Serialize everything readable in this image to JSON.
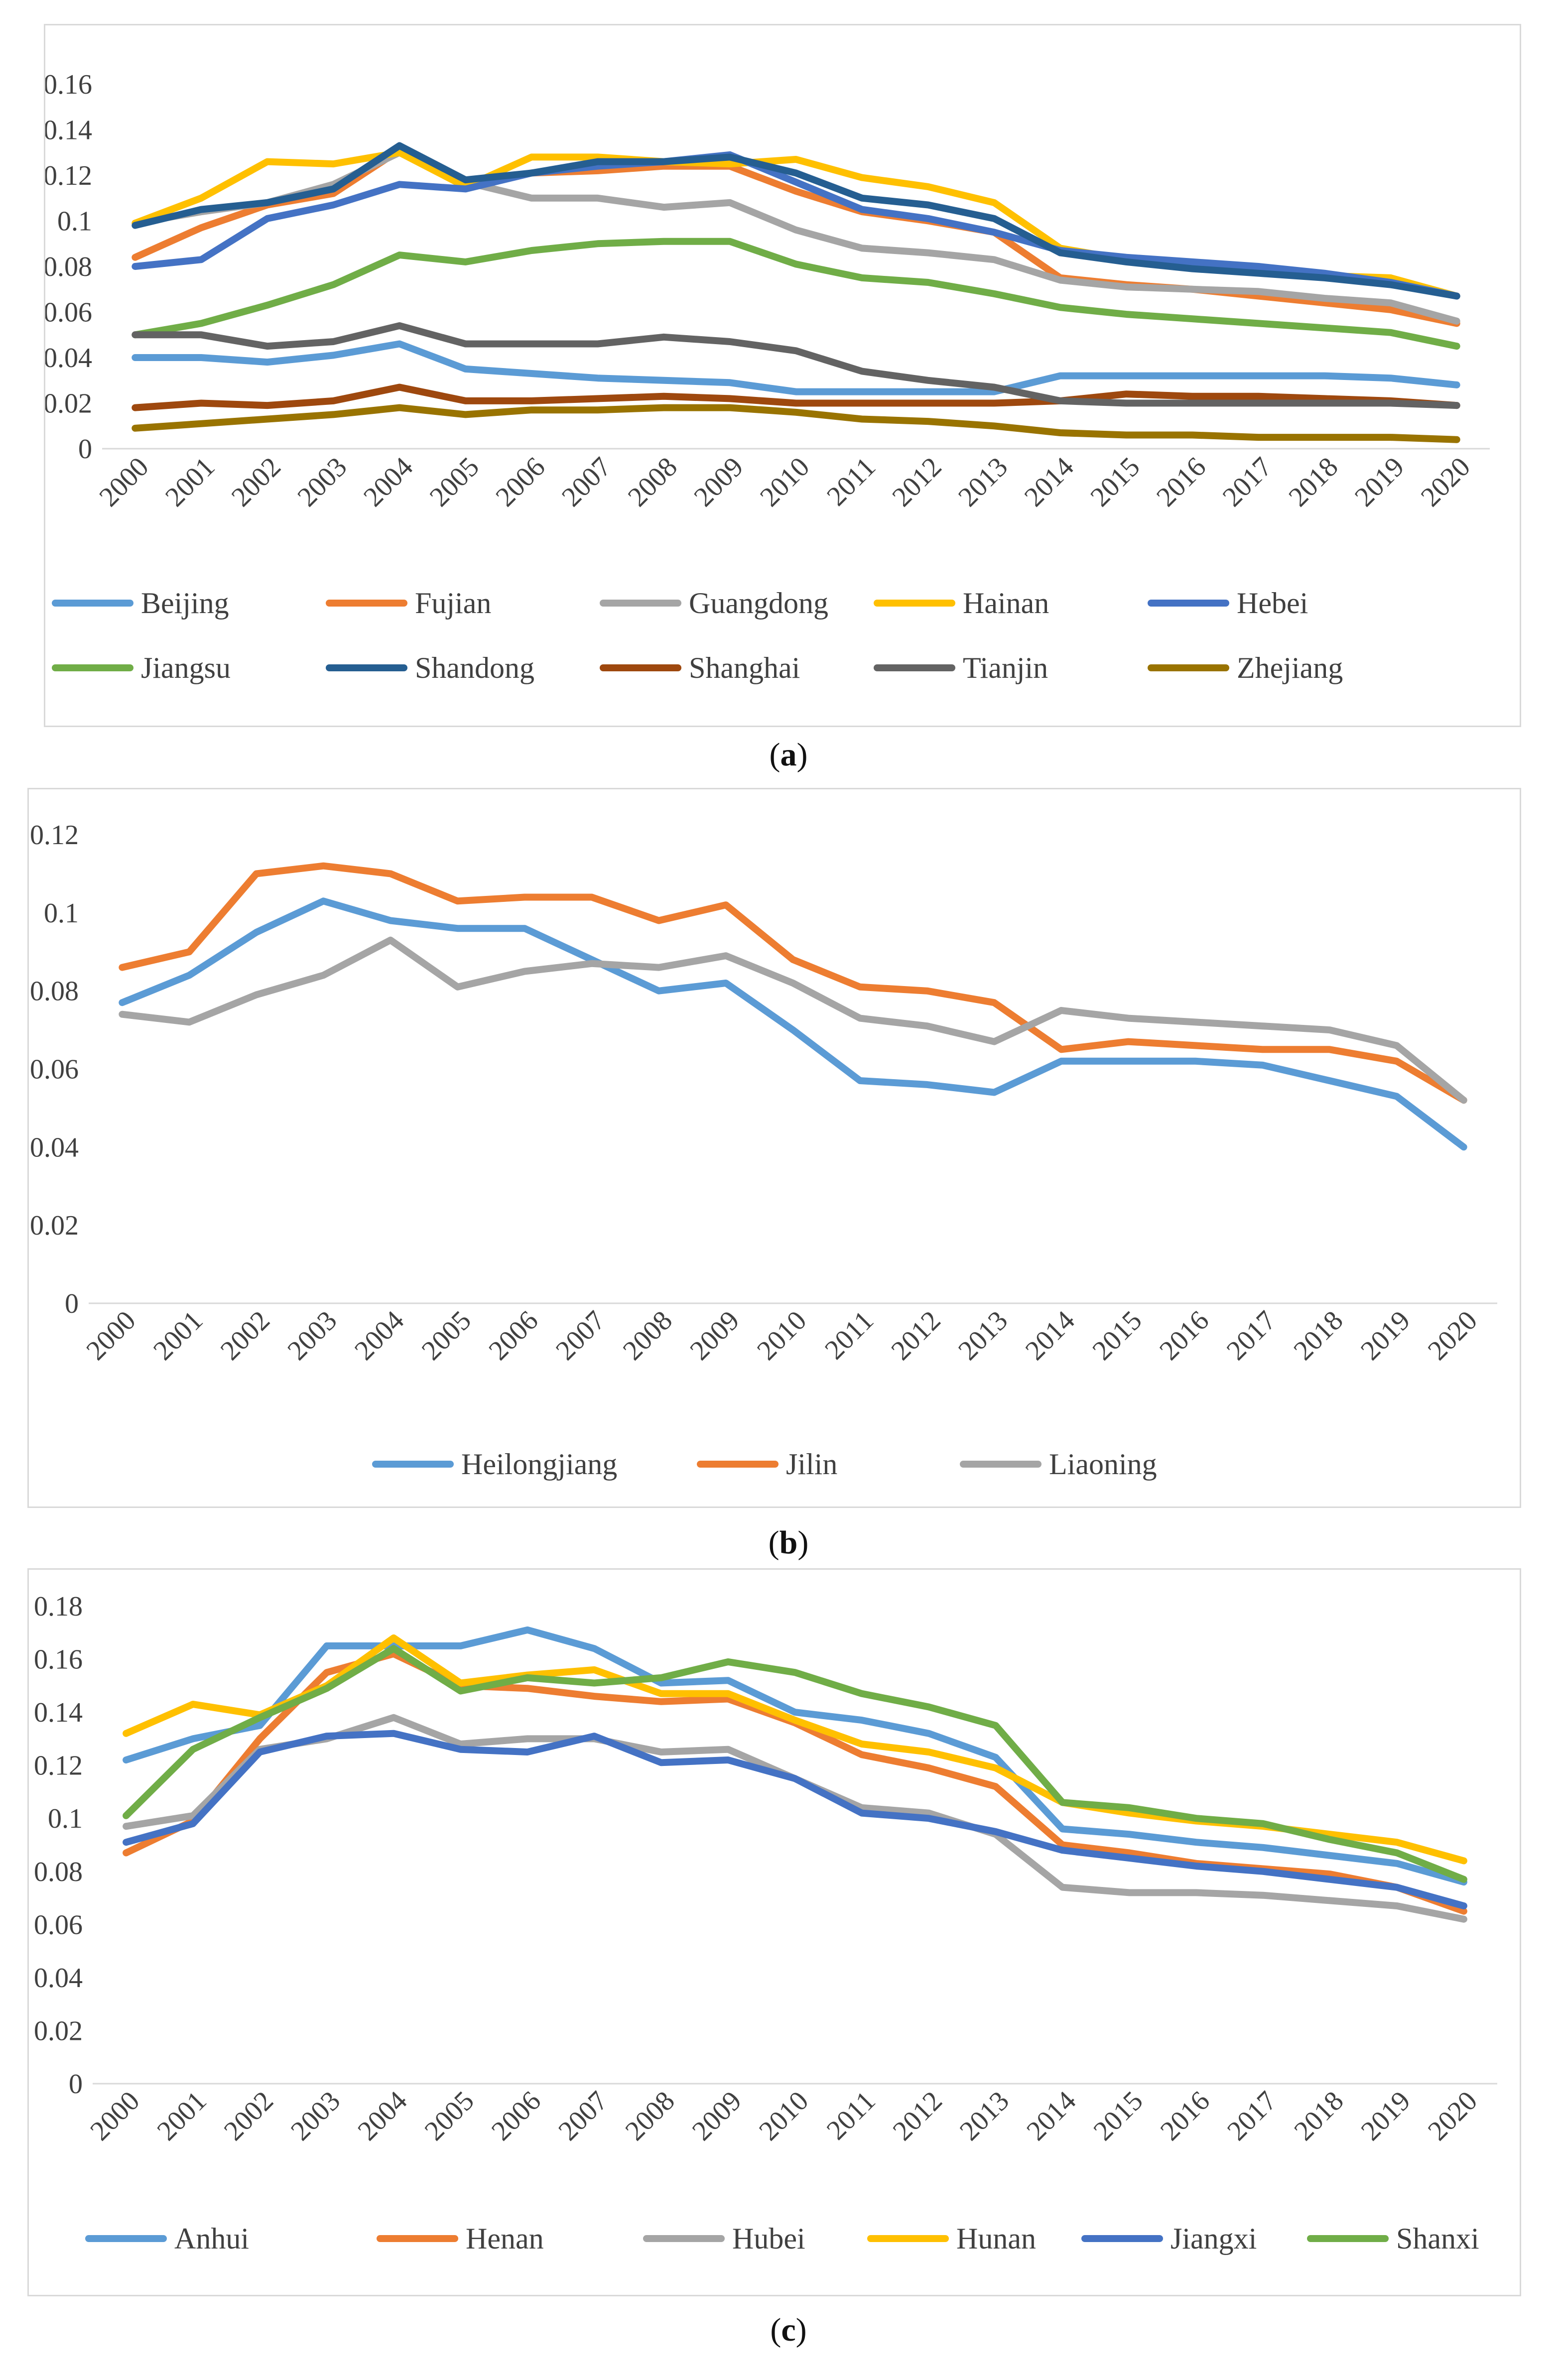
{
  "captions": {
    "a": "a",
    "b": "b",
    "c": "c"
  },
  "chart_data": [
    {
      "type": "line",
      "panel": "a",
      "title": "",
      "xlabel": "",
      "ylabel": "",
      "ylim": [
        0,
        0.16
      ],
      "yticks": [
        "0",
        "0.02",
        "0.04",
        "0.06",
        "0.08",
        "0.1",
        "0.12",
        "0.14",
        "0.16"
      ],
      "grid": false,
      "legend": "bottom",
      "x": [
        "2000",
        "2001",
        "2002",
        "2003",
        "2004",
        "2005",
        "2006",
        "2007",
        "2008",
        "2009",
        "2010",
        "2011",
        "2012",
        "2013",
        "2014",
        "2015",
        "2016",
        "2017",
        "2018",
        "2019",
        "2020"
      ],
      "series": [
        {
          "name": "Beijing",
          "color": "#5b9bd5",
          "values": [
            0.04,
            0.04,
            0.038,
            0.041,
            0.046,
            0.035,
            0.033,
            0.031,
            0.03,
            0.029,
            0.025,
            0.025,
            0.025,
            0.025,
            0.032,
            0.032,
            0.032,
            0.032,
            0.032,
            0.031,
            0.028
          ]
        },
        {
          "name": "Fujian",
          "color": "#ed7d31",
          "values": [
            0.084,
            0.097,
            0.107,
            0.112,
            0.131,
            0.117,
            0.121,
            0.122,
            0.124,
            0.124,
            0.113,
            0.104,
            0.1,
            0.095,
            0.075,
            0.072,
            0.07,
            0.067,
            0.064,
            0.061,
            0.055
          ]
        },
        {
          "name": "Guangdong",
          "color": "#a5a5a5",
          "values": [
            0.099,
            0.104,
            0.108,
            0.116,
            0.13,
            0.117,
            0.11,
            0.11,
            0.106,
            0.108,
            0.096,
            0.088,
            0.086,
            0.083,
            0.074,
            0.071,
            0.07,
            0.069,
            0.066,
            0.064,
            0.056
          ]
        },
        {
          "name": "Hainan",
          "color": "#ffc000",
          "values": [
            0.099,
            0.11,
            0.126,
            0.125,
            0.13,
            0.115,
            0.128,
            0.128,
            0.126,
            0.125,
            0.127,
            0.119,
            0.115,
            0.108,
            0.088,
            0.083,
            0.08,
            0.078,
            0.076,
            0.075,
            0.067
          ]
        },
        {
          "name": "Hebei",
          "color": "#4472c4",
          "values": [
            0.08,
            0.083,
            0.101,
            0.107,
            0.116,
            0.114,
            0.121,
            0.124,
            0.126,
            0.129,
            0.117,
            0.105,
            0.101,
            0.095,
            0.087,
            0.084,
            0.082,
            0.08,
            0.077,
            0.073,
            0.067
          ]
        },
        {
          "name": "Jiangsu",
          "color": "#70ad47",
          "values": [
            0.05,
            0.055,
            0.063,
            0.072,
            0.085,
            0.082,
            0.087,
            0.09,
            0.091,
            0.091,
            0.081,
            0.075,
            0.073,
            0.068,
            0.062,
            0.059,
            0.057,
            0.055,
            0.053,
            0.051,
            0.045
          ]
        },
        {
          "name": "Shandong",
          "color": "#255e91",
          "values": [
            0.098,
            0.105,
            0.108,
            0.114,
            0.133,
            0.118,
            0.121,
            0.126,
            0.126,
            0.128,
            0.121,
            0.11,
            0.107,
            0.101,
            0.086,
            0.082,
            0.079,
            0.077,
            0.075,
            0.072,
            0.067
          ]
        },
        {
          "name": "Shanghai",
          "color": "#9e480e",
          "values": [
            0.018,
            0.02,
            0.019,
            0.021,
            0.027,
            0.021,
            0.021,
            0.022,
            0.023,
            0.022,
            0.02,
            0.02,
            0.02,
            0.02,
            0.021,
            0.024,
            0.023,
            0.023,
            0.022,
            0.021,
            0.019
          ]
        },
        {
          "name": "Tianjin",
          "color": "#636363",
          "values": [
            0.05,
            0.05,
            0.045,
            0.047,
            0.054,
            0.046,
            0.046,
            0.046,
            0.049,
            0.047,
            0.043,
            0.034,
            0.03,
            0.027,
            0.021,
            0.02,
            0.02,
            0.02,
            0.02,
            0.02,
            0.019
          ]
        },
        {
          "name": "Zhejiang",
          "color": "#997300",
          "values": [
            0.009,
            0.011,
            0.013,
            0.015,
            0.018,
            0.015,
            0.017,
            0.017,
            0.018,
            0.018,
            0.016,
            0.013,
            0.012,
            0.01,
            0.007,
            0.006,
            0.006,
            0.005,
            0.005,
            0.005,
            0.004
          ]
        }
      ]
    },
    {
      "type": "line",
      "panel": "b",
      "title": "",
      "xlabel": "",
      "ylabel": "",
      "ylim": [
        0,
        0.12
      ],
      "yticks": [
        "0",
        "0.02",
        "0.04",
        "0.06",
        "0.08",
        "0.1",
        "0.12"
      ],
      "grid": false,
      "legend": "bottom",
      "x": [
        "2000",
        "2001",
        "2002",
        "2003",
        "2004",
        "2005",
        "2006",
        "2007",
        "2008",
        "2009",
        "2010",
        "2011",
        "2012",
        "2013",
        "2014",
        "2015",
        "2016",
        "2017",
        "2018",
        "2019",
        "2020"
      ],
      "series": [
        {
          "name": "Heilongjiang",
          "color": "#5b9bd5",
          "values": [
            0.077,
            0.084,
            0.095,
            0.103,
            0.098,
            0.096,
            0.096,
            0.088,
            0.08,
            0.082,
            0.07,
            0.057,
            0.056,
            0.054,
            0.062,
            0.062,
            0.062,
            0.061,
            0.057,
            0.053,
            0.04
          ]
        },
        {
          "name": "Jilin",
          "color": "#ed7d31",
          "values": [
            0.086,
            0.09,
            0.11,
            0.112,
            0.11,
            0.103,
            0.104,
            0.104,
            0.098,
            0.102,
            0.088,
            0.081,
            0.08,
            0.077,
            0.065,
            0.067,
            0.066,
            0.065,
            0.065,
            0.062,
            0.052
          ]
        },
        {
          "name": "Liaoning",
          "color": "#a5a5a5",
          "values": [
            0.074,
            0.072,
            0.079,
            0.084,
            0.093,
            0.081,
            0.085,
            0.087,
            0.086,
            0.089,
            0.082,
            0.073,
            0.071,
            0.067,
            0.075,
            0.073,
            0.072,
            0.071,
            0.07,
            0.066,
            0.052
          ]
        }
      ]
    },
    {
      "type": "line",
      "panel": "c",
      "title": "",
      "xlabel": "",
      "ylabel": "",
      "ylim": [
        0,
        0.18
      ],
      "yticks": [
        "0",
        "0.02",
        "0.04",
        "0.06",
        "0.08",
        "0.1",
        "0.12",
        "0.14",
        "0.16",
        "0.18"
      ],
      "grid": false,
      "legend": "bottom",
      "x": [
        "2000",
        "2001",
        "2002",
        "2003",
        "2004",
        "2005",
        "2006",
        "2007",
        "2008",
        "2009",
        "2010",
        "2011",
        "2012",
        "2013",
        "2014",
        "2015",
        "2016",
        "2017",
        "2018",
        "2019",
        "2020"
      ],
      "series": [
        {
          "name": "Anhui",
          "color": "#5b9bd5",
          "values": [
            0.122,
            0.13,
            0.135,
            0.165,
            0.165,
            0.165,
            0.171,
            0.164,
            0.151,
            0.152,
            0.14,
            0.137,
            0.132,
            0.123,
            0.096,
            0.094,
            0.091,
            0.089,
            0.086,
            0.083,
            0.076
          ]
        },
        {
          "name": "Henan",
          "color": "#ed7d31",
          "values": [
            0.087,
            0.099,
            0.13,
            0.155,
            0.162,
            0.15,
            0.149,
            0.146,
            0.144,
            0.145,
            0.136,
            0.124,
            0.119,
            0.112,
            0.09,
            0.087,
            0.083,
            0.081,
            0.079,
            0.074,
            0.065
          ]
        },
        {
          "name": "Hubei",
          "color": "#a5a5a5",
          "values": [
            0.097,
            0.101,
            0.126,
            0.13,
            0.138,
            0.128,
            0.13,
            0.13,
            0.125,
            0.126,
            0.115,
            0.104,
            0.102,
            0.094,
            0.074,
            0.072,
            0.072,
            0.071,
            0.069,
            0.067,
            0.062
          ]
        },
        {
          "name": "Hunan",
          "color": "#ffc000",
          "values": [
            0.132,
            0.143,
            0.139,
            0.15,
            0.168,
            0.151,
            0.154,
            0.156,
            0.147,
            0.147,
            0.137,
            0.128,
            0.125,
            0.119,
            0.106,
            0.102,
            0.099,
            0.097,
            0.094,
            0.091,
            0.084
          ]
        },
        {
          "name": "Jiangxi",
          "color": "#4472c4",
          "values": [
            0.091,
            0.098,
            0.125,
            0.131,
            0.132,
            0.126,
            0.125,
            0.131,
            0.121,
            0.122,
            0.115,
            0.102,
            0.1,
            0.095,
            0.088,
            0.085,
            0.082,
            0.08,
            0.077,
            0.074,
            0.067
          ]
        },
        {
          "name": "Shanxi",
          "color": "#70ad47",
          "values": [
            0.101,
            0.126,
            0.138,
            0.149,
            0.164,
            0.148,
            0.153,
            0.151,
            0.153,
            0.159,
            0.155,
            0.147,
            0.142,
            0.135,
            0.106,
            0.104,
            0.1,
            0.098,
            0.092,
            0.087,
            0.077
          ]
        }
      ]
    }
  ]
}
